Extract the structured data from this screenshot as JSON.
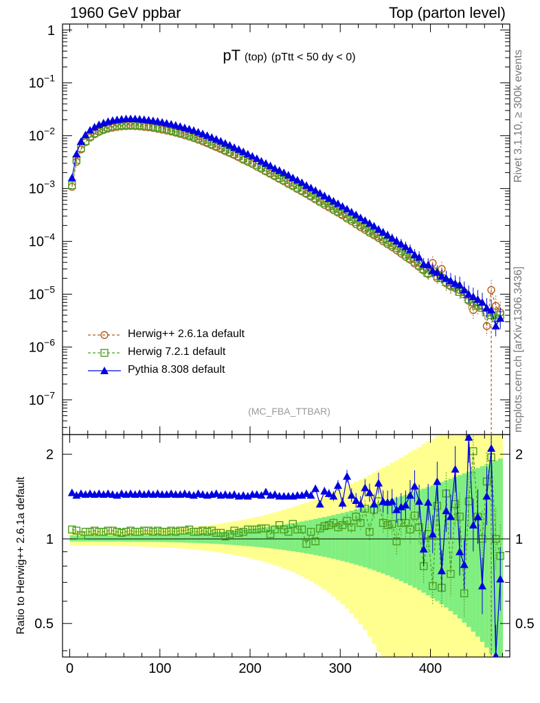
{
  "header": {
    "left": "1960 GeV ppbar",
    "right": "Top (parton level)"
  },
  "side_text": {
    "rivet": "Rivet 3.1.10, ≥ 300k events",
    "mcplots": "mcplots.cern.ch [arXiv:1306.3436]"
  },
  "analysis_tag": "(MC_FBA_TTBAR)",
  "colors": {
    "herwigpp": "#b05a17",
    "herwig7": "#4a9e1f",
    "pythia": "#0000e0",
    "band_inner": "#80ee80",
    "band_outer": "#ffff90"
  },
  "chart_data": {
    "type": "line",
    "title": "pT",
    "title_sub": "(top)",
    "title_extra": "(pTtt < 50 dy < 0)",
    "xlabel": "",
    "xlim": [
      -8,
      488
    ],
    "x_ticks": [
      0,
      100,
      200,
      300,
      400
    ],
    "x_tick_labels": [
      "0",
      "100",
      "200",
      "300",
      "400"
    ],
    "main_panel": {
      "yscale": "log",
      "ylim": [
        2.2e-08,
        1.3
      ],
      "y_ticks": [
        {
          "value": 1,
          "base": "1",
          "exp": ""
        },
        {
          "value": 0.1,
          "base": "10",
          "exp": "−1"
        },
        {
          "value": 0.01,
          "base": "10",
          "exp": "−2"
        },
        {
          "value": 0.001,
          "base": "10",
          "exp": "−3"
        },
        {
          "value": 0.0001,
          "base": "10",
          "exp": "−4"
        },
        {
          "value": 1e-05,
          "base": "10",
          "exp": "−5"
        },
        {
          "value": 1e-06,
          "base": "10",
          "exp": "−6"
        },
        {
          "value": 1e-07,
          "base": "10",
          "exp": "−7"
        }
      ]
    },
    "ratio_panel": {
      "ylabel": "Ratio to Herwig++ 2.6.1a default",
      "ylim": [
        0.38,
        2.35
      ],
      "yscale": "log",
      "y_ticks": [
        0.5,
        1,
        2
      ],
      "y_tick_labels": [
        "0.5",
        "1",
        "2"
      ]
    },
    "x": [
      2.5,
      7.5,
      12.5,
      17.5,
      22.5,
      27.5,
      32.5,
      37.5,
      42.5,
      47.5,
      52.5,
      57.5,
      62.5,
      67.5,
      72.5,
      77.5,
      82.5,
      87.5,
      92.5,
      97.5,
      102.5,
      107.5,
      112.5,
      117.5,
      122.5,
      127.5,
      132.5,
      137.5,
      142.5,
      147.5,
      152.5,
      157.5,
      162.5,
      167.5,
      172.5,
      177.5,
      182.5,
      187.5,
      192.5,
      197.5,
      202.5,
      207.5,
      212.5,
      217.5,
      222.5,
      227.5,
      232.5,
      237.5,
      242.5,
      247.5,
      252.5,
      257.5,
      262.5,
      267.5,
      272.5,
      277.5,
      282.5,
      287.5,
      292.5,
      297.5,
      302.5,
      307.5,
      312.5,
      317.5,
      322.5,
      327.5,
      332.5,
      337.5,
      342.5,
      347.5,
      352.5,
      357.5,
      362.5,
      367.5,
      372.5,
      377.5,
      382.5,
      387.5,
      392.5,
      397.5,
      402.5,
      407.5,
      412.5,
      417.5,
      422.5,
      427.5,
      432.5,
      437.5,
      442.5,
      447.5,
      452.5,
      457.5,
      462.5,
      467.5,
      472.5,
      477.5
    ],
    "herwigpp_values": [
      0.00108,
      0.0032,
      0.0055,
      0.0075,
      0.0092,
      0.0106,
      0.0118,
      0.0128,
      0.0136,
      0.0142,
      0.0147,
      0.015,
      0.0152,
      0.0153,
      0.0152,
      0.015,
      0.0147,
      0.0144,
      0.014,
      0.0135,
      0.013,
      0.0125,
      0.012,
      0.0114,
      0.0108,
      0.0102,
      0.0096,
      0.009,
      0.0084,
      0.0078,
      0.0072,
      0.0066,
      0.0061,
      0.0056,
      0.0051,
      0.0047,
      0.0043,
      0.0039,
      0.0035,
      0.0032,
      0.0029,
      0.0026,
      0.00235,
      0.0021,
      0.0019,
      0.0017,
      0.00152,
      0.00137,
      0.00122,
      0.0011,
      0.00098,
      0.00088,
      0.00079,
      0.0007,
      0.00062,
      0.00055,
      0.00049,
      0.00044,
      0.00039,
      0.00035,
      0.00031,
      0.00027,
      0.00024,
      0.00021,
      0.000185,
      0.000165,
      0.000145,
      0.00013,
      0.000115,
      0.0001,
      8.8e-05,
      7.8e-05,
      6.8e-05,
      5.9e-05,
      5.1e-05,
      4.5e-05,
      3.8e-05,
      3.3e-05,
      2.8e-05,
      2.4e-05,
      3.9e-05,
      2e-05,
      3e-05,
      1.6e-05,
      1.4e-05,
      1.3e-05,
      1.2e-05,
      1.1e-05,
      7.5e-06,
      5e-06,
      7e-06,
      6e-06,
      2.5e-06,
      1.2e-05,
      6e-06,
      4.5e-06
    ],
    "herwig7_values": [
      0.00115,
      0.0035,
      0.0058,
      0.0079,
      0.0097,
      0.0112,
      0.0125,
      0.0135,
      0.0143,
      0.015,
      0.0155,
      0.0158,
      0.016,
      0.0161,
      0.016,
      0.0158,
      0.0155,
      0.0152,
      0.0148,
      0.0143,
      0.0138,
      0.0132,
      0.0126,
      0.012,
      0.0114,
      0.0108,
      0.0102,
      0.0096,
      0.0089,
      0.0083,
      0.0076,
      0.007,
      0.0064,
      0.0059,
      0.0054,
      0.0049,
      0.0045,
      0.0041,
      0.0037,
      0.0034,
      0.0031,
      0.0028,
      0.0025,
      0.0022,
      0.002,
      0.0018,
      0.0016,
      0.00145,
      0.0013,
      0.00117,
      0.00104,
      0.00093,
      0.00083,
      0.00074,
      0.00066,
      0.00059,
      0.00053,
      0.00047,
      0.00042,
      0.00037,
      0.00033,
      0.00029,
      0.00026,
      0.00023,
      0.0002,
      0.00018,
      0.000158,
      0.00014,
      0.000125,
      0.00011,
      9.6e-05,
      8.5e-05,
      7.5e-05,
      6.5e-05,
      5.6e-05,
      4.8e-05,
      4.1e-05,
      3.5e-05,
      3e-05,
      2.5e-05,
      2.7e-05,
      2.2e-05,
      2e-05,
      1.7e-05,
      1.5e-05,
      1.4e-05,
      1.1e-05,
      1e-05,
      8e-06,
      7e-06,
      6e-06,
      5.5e-06,
      4.5e-06,
      4e-06,
      3.5e-06,
      4e-06
    ],
    "pythia_values": [
      0.0016,
      0.0045,
      0.0078,
      0.0104,
      0.0127,
      0.0146,
      0.0162,
      0.0175,
      0.0186,
      0.0195,
      0.0201,
      0.0206,
      0.0209,
      0.021,
      0.0209,
      0.0206,
      0.0202,
      0.0198,
      0.0193,
      0.0187,
      0.018,
      0.0173,
      0.0166,
      0.0158,
      0.015,
      0.0142,
      0.0134,
      0.0126,
      0.0117,
      0.0109,
      0.0101,
      0.0093,
      0.0086,
      0.0079,
      0.0072,
      0.0066,
      0.006,
      0.0055,
      0.005,
      0.0045,
      0.0041,
      0.0037,
      0.0033,
      0.003,
      0.0027,
      0.0024,
      0.0022,
      0.002,
      0.0018,
      0.0016,
      0.00145,
      0.0013,
      0.00115,
      0.00103,
      0.00092,
      0.00082,
      0.00073,
      0.00065,
      0.00058,
      0.00052,
      0.00046,
      0.00041,
      0.00036,
      0.00032,
      0.00028,
      0.00025,
      0.00022,
      0.000195,
      0.00017,
      0.00015,
      0.000132,
      0.000116,
      0.000102,
      9e-05,
      7.9e-05,
      6.9e-05,
      5.6e-05,
      5e-05,
      3.7e-05,
      3.6e-05,
      2.8e-05,
      2.6e-05,
      2.2e-05,
      2e-05,
      1.8e-05,
      1.6e-05,
      1.5e-05,
      1.2e-05,
      1e-05,
      9e-06,
      8e-06,
      7e-06,
      5.5e-06,
      5e-06,
      2.5e-06,
      3.5e-06
    ],
    "herwig7_ratio": [
      1.08,
      1.07,
      1.03,
      1.06,
      1.06,
      1.07,
      1.06,
      1.06,
      1.07,
      1.07,
      1.06,
      1.05,
      1.06,
      1.07,
      1.06,
      1.06,
      1.07,
      1.07,
      1.06,
      1.07,
      1.06,
      1.06,
      1.07,
      1.06,
      1.07,
      1.07,
      1.08,
      1.06,
      1.06,
      1.07,
      1.06,
      1.07,
      1.05,
      1.05,
      1.02,
      1.04,
      1.07,
      1.05,
      1.06,
      1.08,
      1.08,
      1.08,
      1.09,
      1.09,
      1.04,
      1.08,
      1.12,
      1.08,
      1.06,
      1.13,
      1.08,
      1.08,
      0.96,
      1.06,
      0.98,
      1.09,
      1.11,
      1.12,
      1.14,
      1.1,
      1.12,
      1.16,
      1.1,
      1.2,
      1.14,
      1.28,
      1.06,
      1.27,
      1.36,
      1.14,
      1.12,
      1.13,
      0.98,
      1.14,
      1.14,
      1.08,
      1.21,
      1.1,
      0.8,
      1.04,
      0.68,
      1.31,
      0.67,
      1.45,
      0.75,
      1.33,
      1.2,
      0.64,
      1.36,
      2.05,
      1.2,
      1.0,
      1.6,
      1.95,
      1.0,
      0.87
    ],
    "pythia_ratio": [
      1.46,
      1.43,
      1.45,
      1.44,
      1.45,
      1.44,
      1.45,
      1.44,
      1.45,
      1.44,
      1.43,
      1.45,
      1.44,
      1.45,
      1.44,
      1.45,
      1.44,
      1.45,
      1.44,
      1.45,
      1.44,
      1.44,
      1.45,
      1.44,
      1.44,
      1.45,
      1.44,
      1.43,
      1.45,
      1.44,
      1.43,
      1.44,
      1.45,
      1.43,
      1.44,
      1.43,
      1.44,
      1.42,
      1.43,
      1.42,
      1.44,
      1.44,
      1.43,
      1.47,
      1.43,
      1.44,
      1.42,
      1.42,
      1.42,
      1.42,
      1.43,
      1.43,
      1.45,
      1.43,
      1.51,
      1.33,
      1.48,
      1.45,
      1.42,
      1.55,
      1.34,
      1.67,
      1.43,
      1.37,
      1.33,
      1.52,
      1.46,
      1.33,
      1.58,
      1.36,
      1.35,
      1.36,
      1.27,
      1.3,
      1.32,
      1.43,
      1.54,
      1.36,
      0.92,
      1.35,
      1.04,
      1.6,
      0.77,
      1.26,
      1.2,
      1.77,
      0.9,
      0.81,
      2.3,
      1.12,
      1.2,
      0.68,
      1.42,
      2.1,
      0.38,
      0.72
    ]
  },
  "legend": [
    {
      "label": "Herwig++ 2.6.1a default"
    },
    {
      "label": "Herwig 7.2.1 default"
    },
    {
      "label": "Pythia 8.308 default"
    }
  ]
}
